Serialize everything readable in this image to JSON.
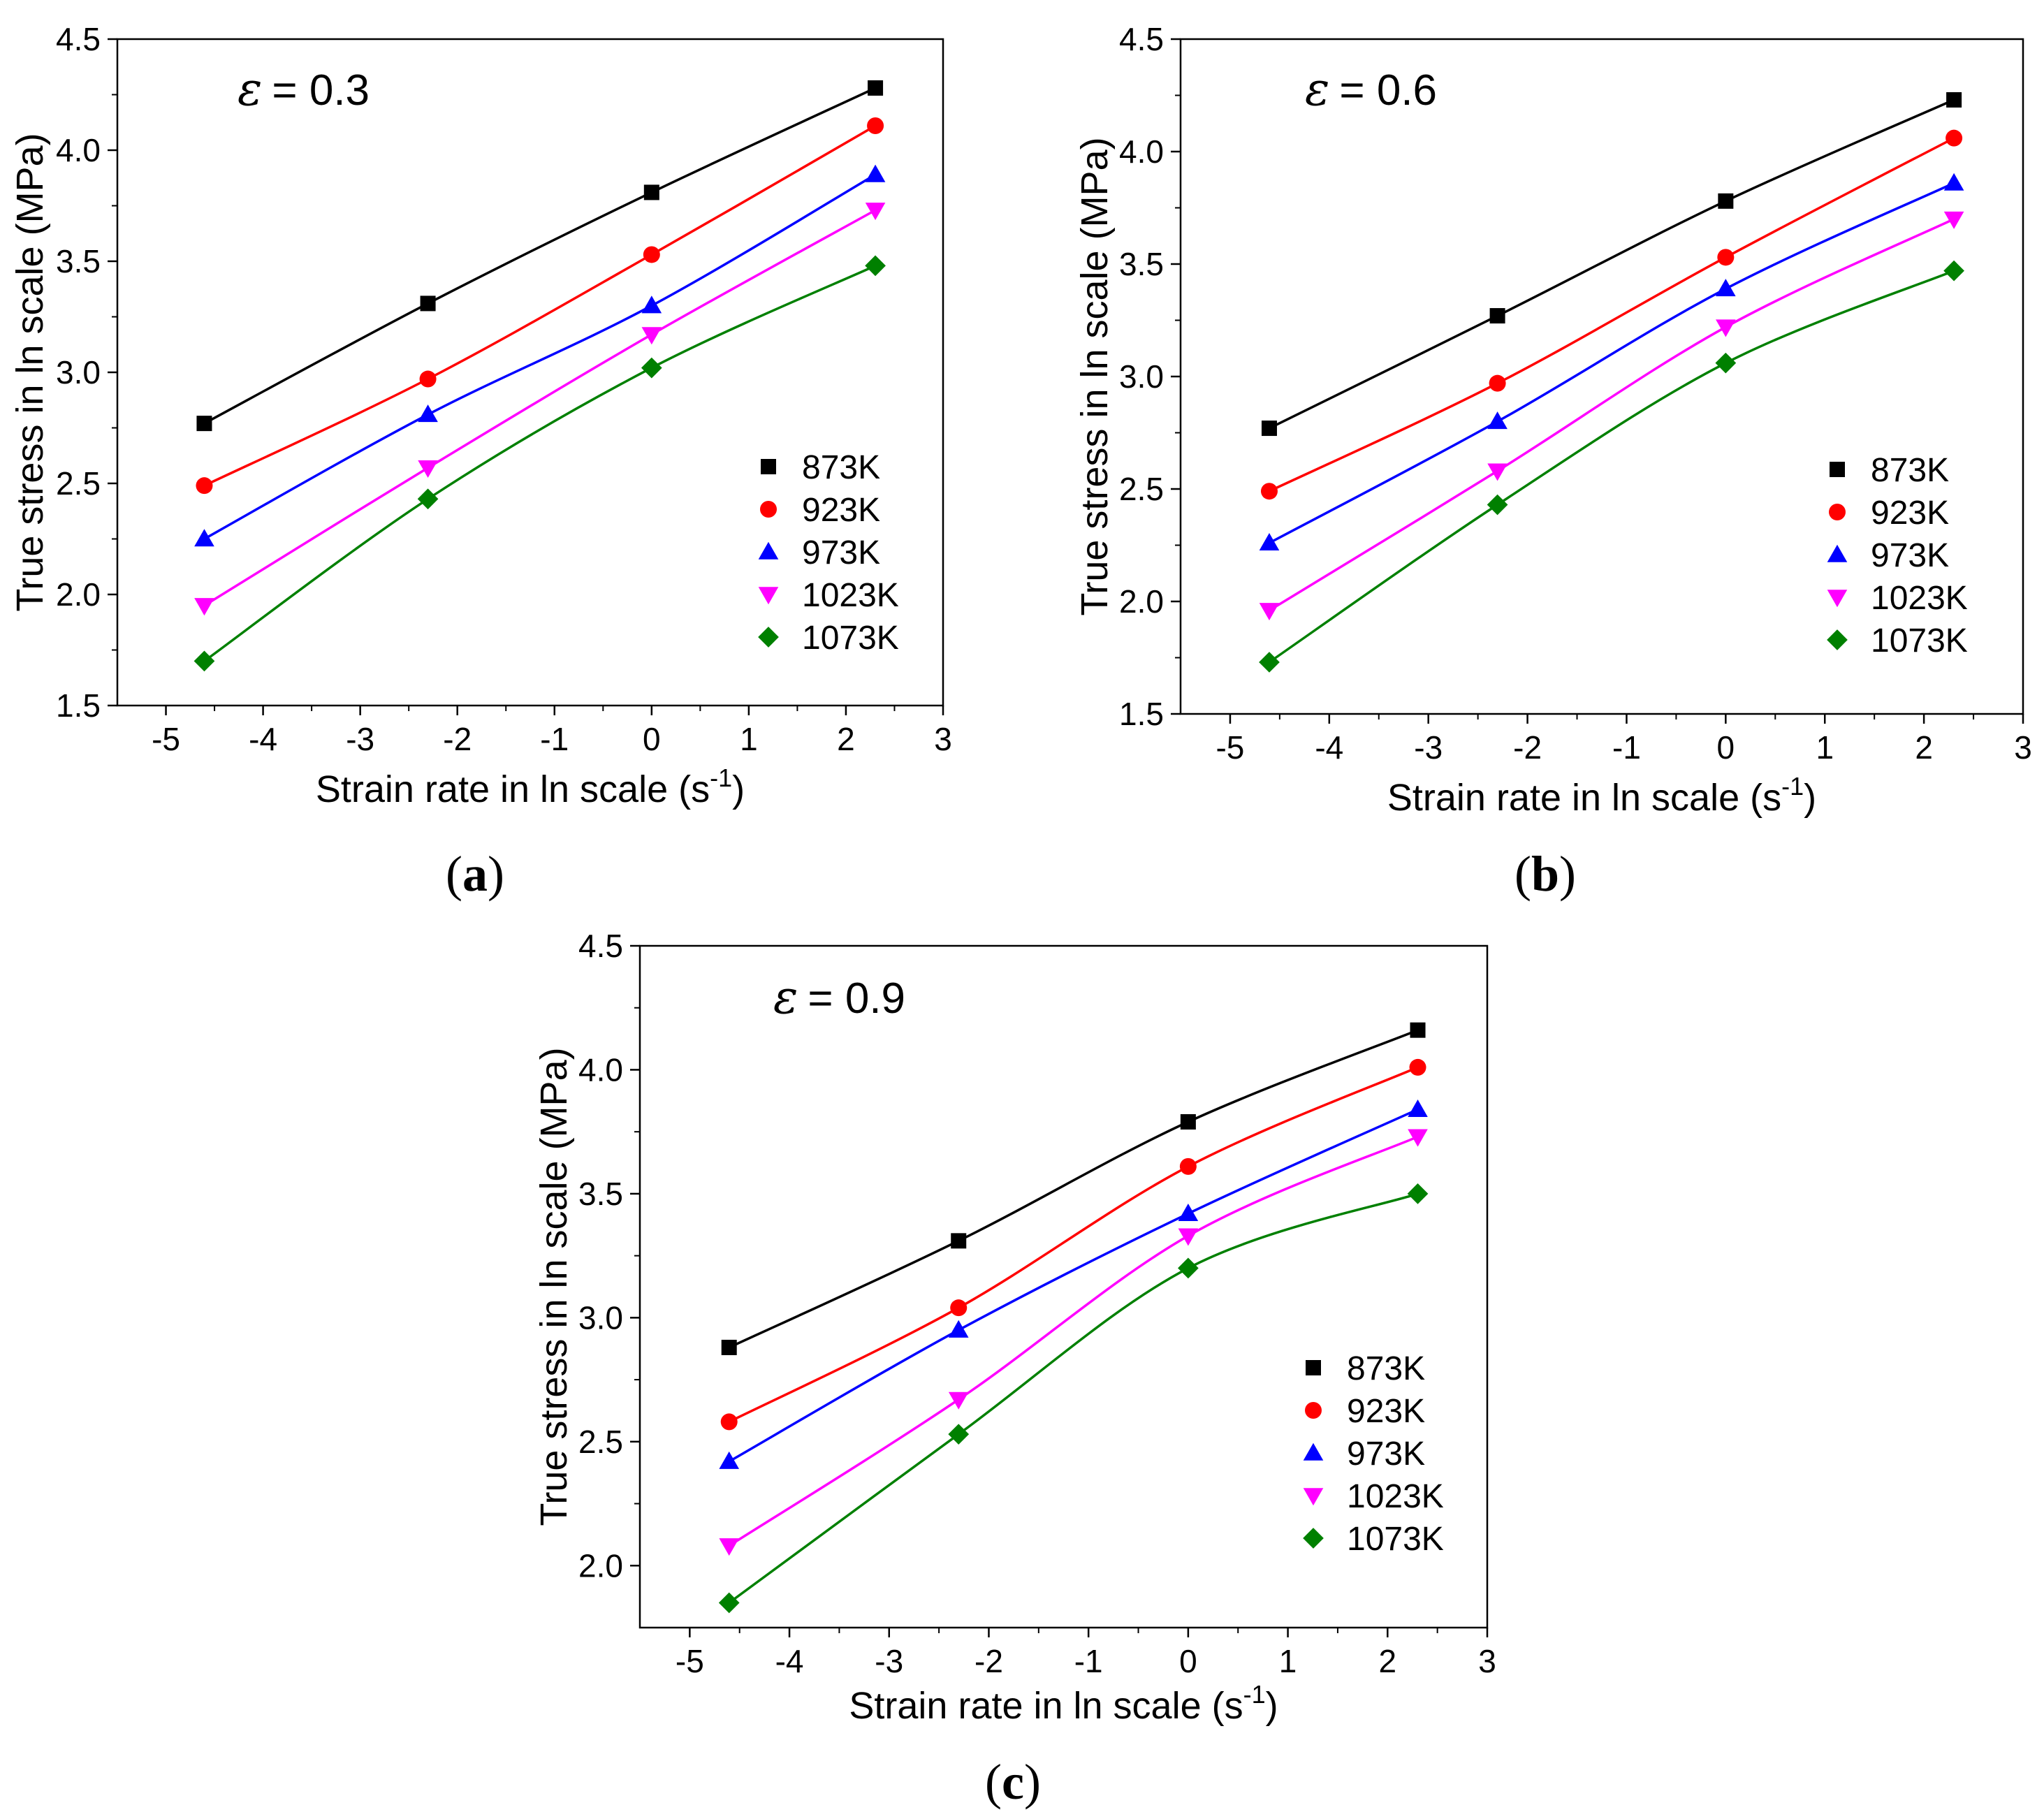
{
  "colors": {
    "873K": "#000000",
    "923K": "#ff0000",
    "973K": "#0000ff",
    "1023K": "#ff00ff",
    "1073K": "#008000"
  },
  "chart_data": [
    {
      "type": "scatter",
      "panel_label_open": "(",
      "panel_label_letter": "a",
      "panel_label_close": ")",
      "annotation_symbol": "ε",
      "annotation_text": "= 0.3",
      "xlabel": "Strain rate in ln scale (s",
      "xlabel_sup": "-1",
      "xlabel_end": ")",
      "ylabel": "True stress in ln scale (MPa)",
      "xlim": [
        -5.5,
        3
      ],
      "ylim": [
        1.5,
        4.5
      ],
      "xticks": [
        "-5",
        "-4",
        "-3",
        "-2",
        "-1",
        "0",
        "1",
        "2",
        "3"
      ],
      "yticks": [
        "1.5",
        "2.0",
        "2.5",
        "3.0",
        "3.5",
        "4.0",
        "4.5"
      ],
      "legend_position": "bottom-right",
      "x": [
        -4.605,
        -2.303,
        0,
        2.303
      ],
      "series": [
        {
          "name": "873K",
          "marker": "square",
          "values": [
            2.77,
            3.31,
            3.81,
            4.28
          ]
        },
        {
          "name": "923K",
          "marker": "circle",
          "values": [
            2.49,
            2.97,
            3.53,
            4.11
          ]
        },
        {
          "name": "973K",
          "marker": "triangle-up",
          "values": [
            2.25,
            2.81,
            3.3,
            3.89
          ]
        },
        {
          "name": "1023K",
          "marker": "triangle-down",
          "values": [
            1.95,
            2.57,
            3.17,
            3.73
          ]
        },
        {
          "name": "1073K",
          "marker": "diamond",
          "values": [
            1.7,
            2.43,
            3.02,
            3.48
          ]
        }
      ]
    },
    {
      "type": "scatter",
      "panel_label_open": "(",
      "panel_label_letter": "b",
      "panel_label_close": ")",
      "annotation_symbol": "ε",
      "annotation_text": "= 0.6",
      "xlabel": "Strain rate in ln scale (s",
      "xlabel_sup": "-1",
      "xlabel_end": ")",
      "ylabel": "True stress in ln scale (MPa)",
      "xlim": [
        -5.5,
        3
      ],
      "ylim": [
        1.5,
        4.5
      ],
      "xticks": [
        "-5",
        "-4",
        "-3",
        "-2",
        "-1",
        "0",
        "1",
        "2",
        "3"
      ],
      "yticks": [
        "1.5",
        "2.0",
        "2.5",
        "3.0",
        "3.5",
        "4.0",
        "4.5"
      ],
      "legend_position": "bottom-right",
      "x": [
        -4.605,
        -2.303,
        0,
        2.303
      ],
      "series": [
        {
          "name": "873K",
          "marker": "square",
          "values": [
            2.77,
            3.27,
            3.78,
            4.23
          ]
        },
        {
          "name": "923K",
          "marker": "circle",
          "values": [
            2.49,
            2.97,
            3.53,
            4.06
          ]
        },
        {
          "name": "973K",
          "marker": "triangle-up",
          "values": [
            2.26,
            2.8,
            3.39,
            3.86
          ]
        },
        {
          "name": "1023K",
          "marker": "triangle-down",
          "values": [
            1.96,
            2.58,
            3.22,
            3.7
          ]
        },
        {
          "name": "1073K",
          "marker": "diamond",
          "values": [
            1.73,
            2.43,
            3.06,
            3.47
          ]
        }
      ]
    },
    {
      "type": "scatter",
      "panel_label_open": "(",
      "panel_label_letter": "c",
      "panel_label_close": ")",
      "annotation_symbol": "ε",
      "annotation_text": "= 0.9",
      "xlabel": "Strain rate in ln scale (s",
      "xlabel_sup": "-1",
      "xlabel_end": ")",
      "ylabel": "True stress in ln scale (MPa)",
      "xlim": [
        -5.5,
        3
      ],
      "ylim": [
        1.75,
        4.5
      ],
      "xticks": [
        "-5",
        "-4",
        "-3",
        "-2",
        "-1",
        "0",
        "1",
        "2",
        "3"
      ],
      "yticks": [
        "2.0",
        "2.5",
        "3.0",
        "3.5",
        "4.0",
        "4.5"
      ],
      "legend_position": "bottom-right",
      "x": [
        -4.605,
        -2.303,
        0,
        2.303
      ],
      "series": [
        {
          "name": "873K",
          "marker": "square",
          "values": [
            2.88,
            3.31,
            3.79,
            4.16
          ]
        },
        {
          "name": "923K",
          "marker": "circle",
          "values": [
            2.58,
            3.04,
            3.61,
            4.01
          ]
        },
        {
          "name": "973K",
          "marker": "triangle-up",
          "values": [
            2.42,
            2.95,
            3.42,
            3.84
          ]
        },
        {
          "name": "1023K",
          "marker": "triangle-down",
          "values": [
            2.08,
            2.67,
            3.33,
            3.73
          ]
        },
        {
          "name": "1073K",
          "marker": "diamond",
          "values": [
            1.85,
            2.53,
            3.2,
            3.5
          ]
        }
      ]
    }
  ]
}
